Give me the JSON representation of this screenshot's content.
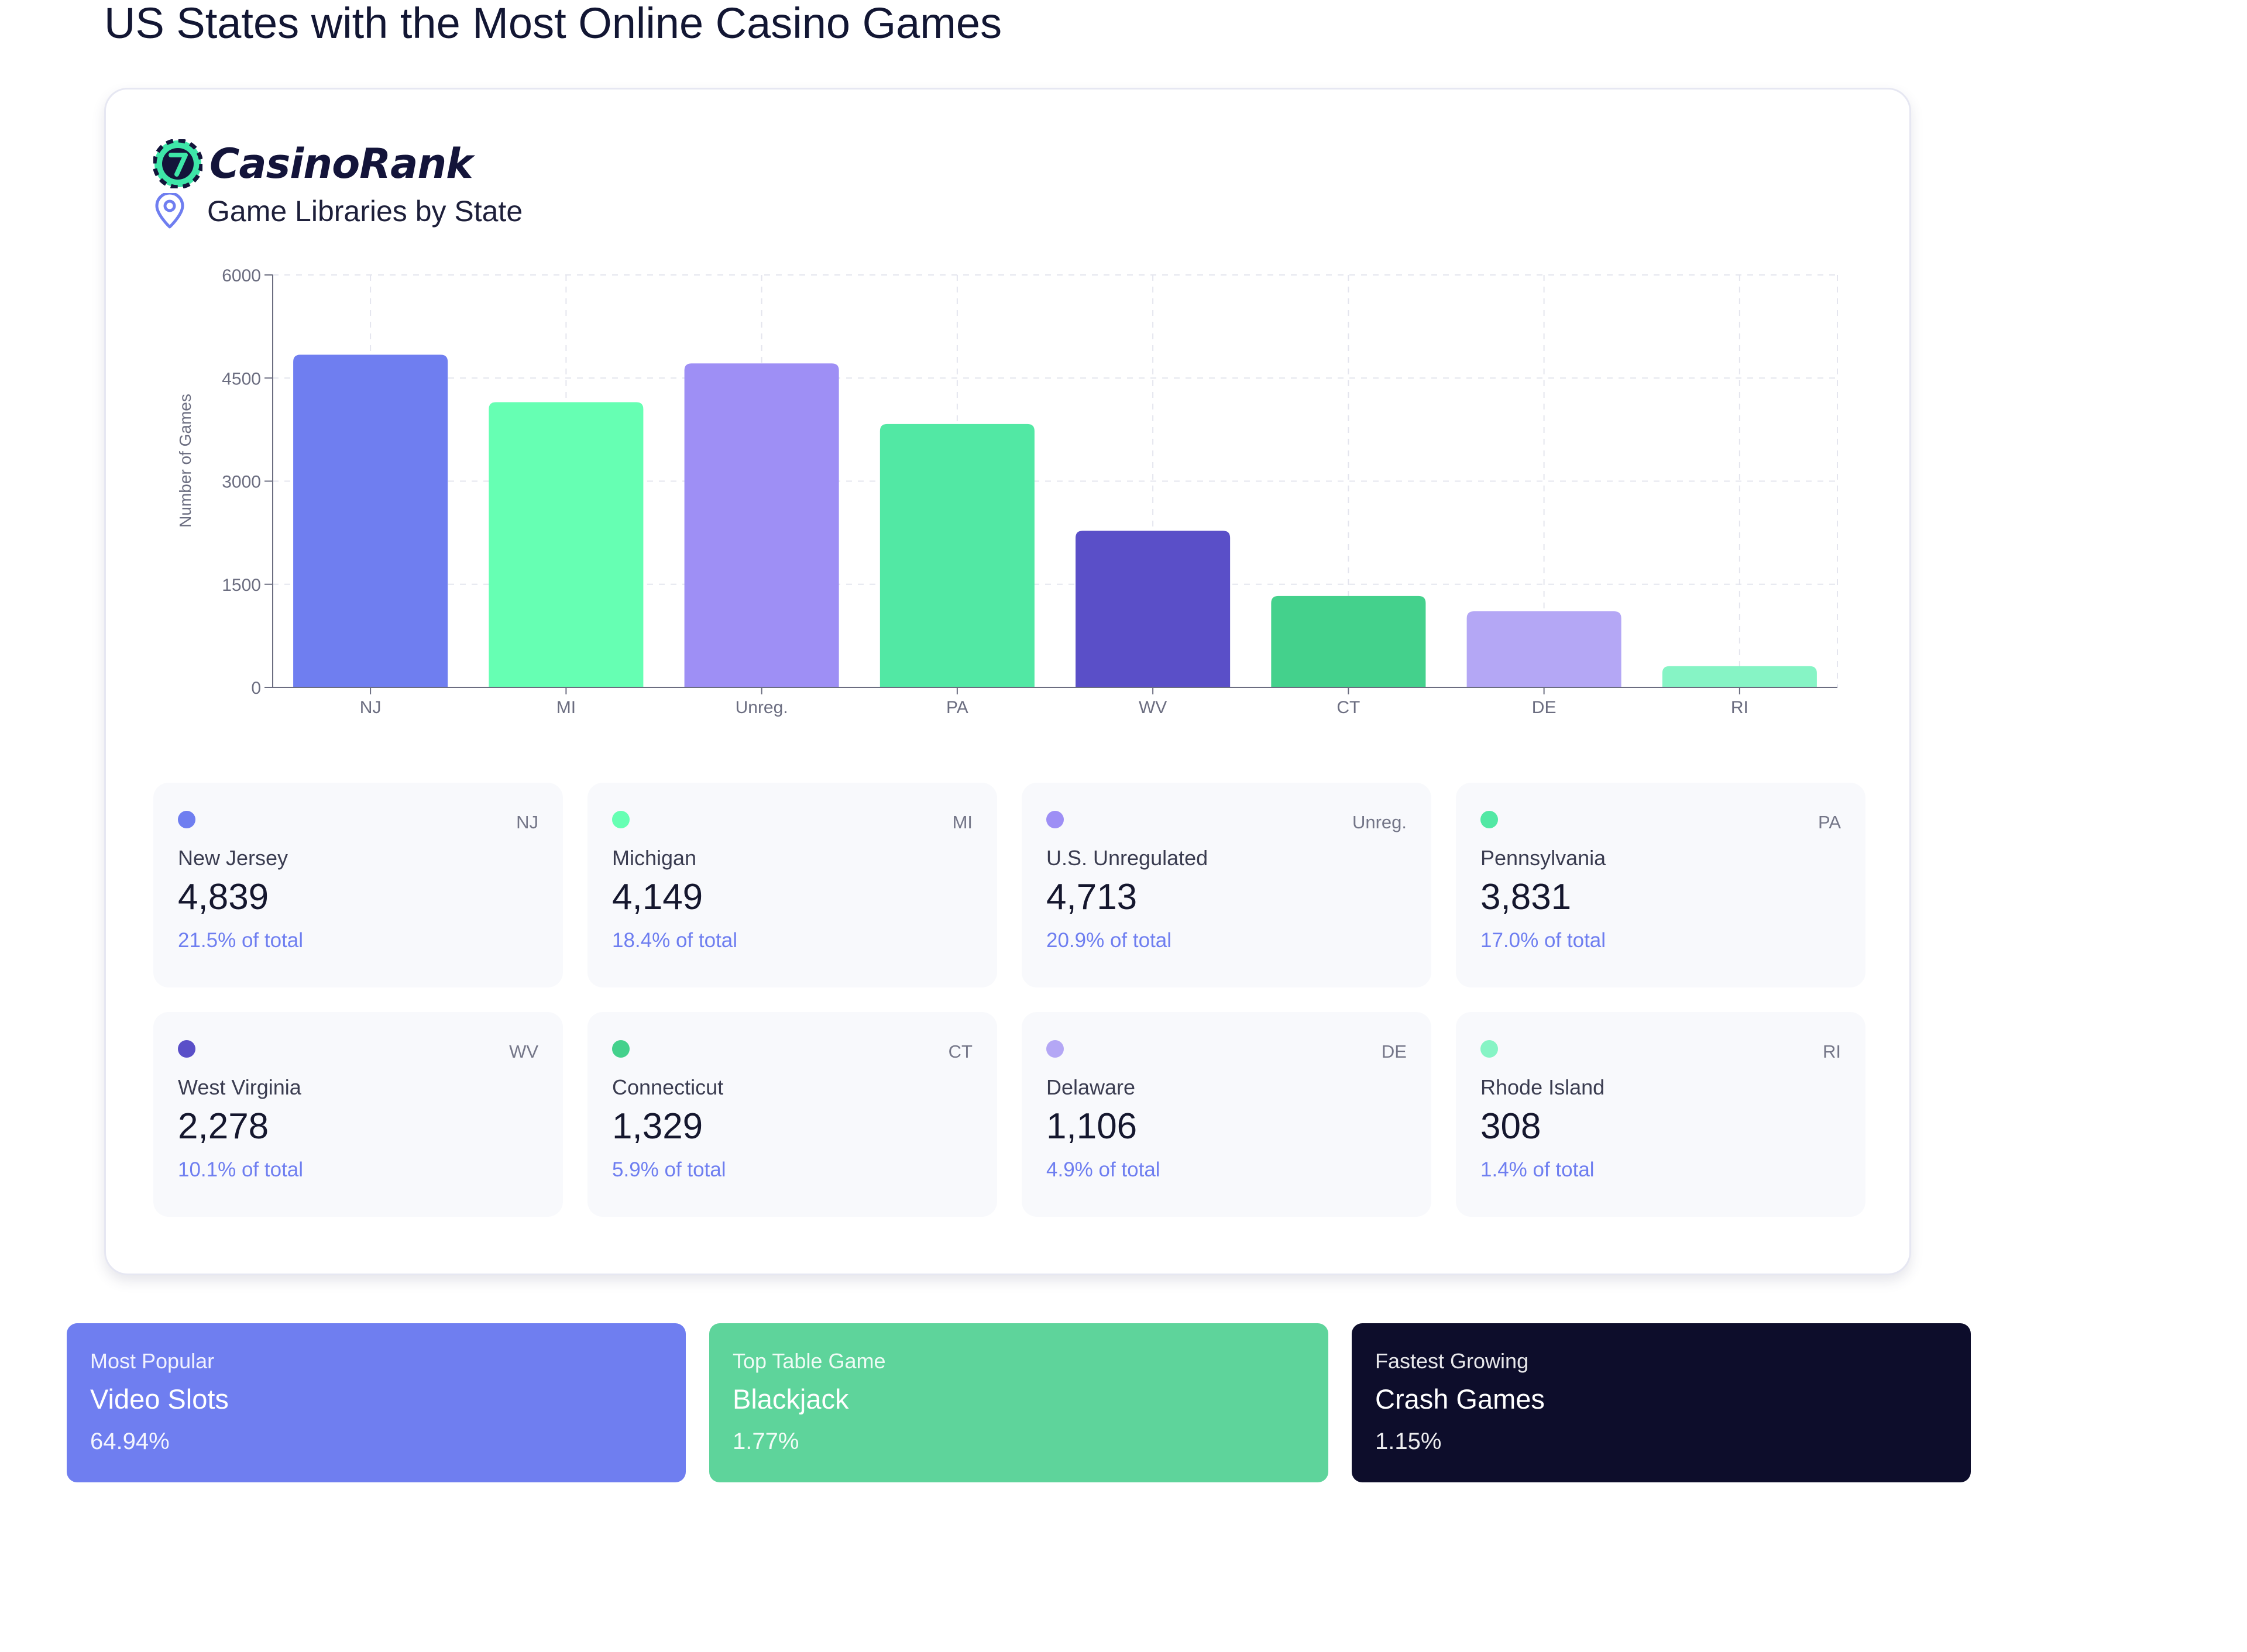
{
  "page_title": "US States with the Most Online Casino Games",
  "brand": {
    "name": "CasinoRank",
    "logo_icon": "casino-chip-seven-icon"
  },
  "subtitle": "Game Libraries by State",
  "chart_data": {
    "type": "bar",
    "title": "",
    "xlabel": "",
    "ylabel": "Number of Games",
    "categories": [
      "NJ",
      "MI",
      "Unreg.",
      "PA",
      "WV",
      "CT",
      "DE",
      "RI"
    ],
    "values": [
      4839,
      4149,
      4713,
      3831,
      2278,
      1329,
      1106,
      308
    ],
    "colors": [
      "#6f7ef0",
      "#66ffb3",
      "#9e8ff5",
      "#52e8a4",
      "#5a4fc8",
      "#44d18c",
      "#b4a7f5",
      "#86f4c5"
    ],
    "yticks": [
      0,
      1500,
      3000,
      4500,
      6000
    ],
    "ylim": [
      0,
      6000
    ],
    "grid": true
  },
  "stats": [
    {
      "abbr": "NJ",
      "name": "New Jersey",
      "value": "4,839",
      "pct": "21.5% of total",
      "color": "#6f7ef0"
    },
    {
      "abbr": "MI",
      "name": "Michigan",
      "value": "4,149",
      "pct": "18.4% of total",
      "color": "#66ffb3"
    },
    {
      "abbr": "Unreg.",
      "name": "U.S. Unregulated",
      "value": "4,713",
      "pct": "20.9% of total",
      "color": "#9e8ff5"
    },
    {
      "abbr": "PA",
      "name": "Pennsylvania",
      "value": "3,831",
      "pct": "17.0% of total",
      "color": "#52e8a4"
    },
    {
      "abbr": "WV",
      "name": "West Virginia",
      "value": "2,278",
      "pct": "10.1% of total",
      "color": "#5a4fc8"
    },
    {
      "abbr": "CT",
      "name": "Connecticut",
      "value": "1,329",
      "pct": "5.9% of total",
      "color": "#44d18c"
    },
    {
      "abbr": "DE",
      "name": "Delaware",
      "value": "1,106",
      "pct": "4.9% of total",
      "color": "#b4a7f5"
    },
    {
      "abbr": "RI",
      "name": "Rhode Island",
      "value": "308",
      "pct": "1.4% of total",
      "color": "#86f4c5"
    }
  ],
  "features": [
    {
      "label": "Most Popular",
      "title": "Video Slots",
      "value": "64.94%",
      "color": "#6f7ef0"
    },
    {
      "label": "Top Table Game",
      "title": "Blackjack",
      "value": "1.77%",
      "color": "#5ed49b"
    },
    {
      "label": "Fastest Growing",
      "title": "Crash Games",
      "value": "1.15%",
      "color": "#0d0d2b"
    }
  ]
}
